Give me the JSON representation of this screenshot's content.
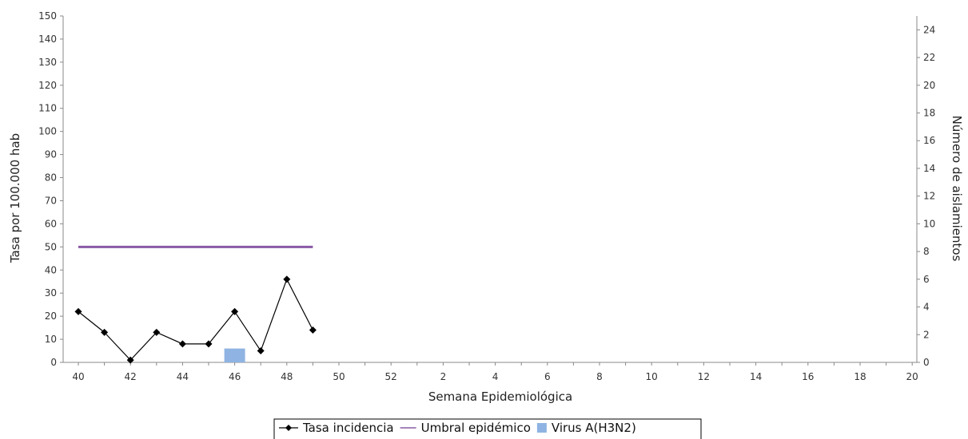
{
  "chart_data": {
    "type": "line",
    "x_categories": [
      "40",
      "41",
      "42",
      "43",
      "44",
      "45",
      "46",
      "47",
      "48",
      "49",
      "50",
      "51",
      "52",
      "1",
      "2",
      "3",
      "4",
      "5",
      "6",
      "7",
      "8",
      "9",
      "10",
      "11",
      "12",
      "13",
      "14",
      "15",
      "16",
      "17",
      "18",
      "19",
      "20"
    ],
    "x_tick_labels_shown": [
      "40",
      "42",
      "44",
      "46",
      "48",
      "50",
      "52",
      "2",
      "4",
      "6",
      "8",
      "10",
      "12",
      "14",
      "16",
      "18",
      "20"
    ],
    "xlabel": "Semana Epidemiológica",
    "ylabel_left": "Tasa por 100.000 hab",
    "ylabel_right": "Número de aislamientos",
    "ylim_left": [
      0,
      150
    ],
    "yticks_left": [
      "0",
      "10",
      "20",
      "30",
      "40",
      "50",
      "60",
      "70",
      "80",
      "90",
      "100",
      "110",
      "120",
      "130",
      "140",
      "150"
    ],
    "ylim_right": [
      0,
      25
    ],
    "yticks_right": [
      "0",
      "2",
      "4",
      "6",
      "8",
      "10",
      "12",
      "14",
      "16",
      "18",
      "20",
      "22",
      "24"
    ],
    "grid": false,
    "legend_position": "bottom",
    "series": [
      {
        "name": "Tasa incidencia",
        "kind": "line-markers",
        "axis": "left",
        "color": "#000000",
        "x": [
          "40",
          "41",
          "42",
          "43",
          "44",
          "45",
          "46",
          "47",
          "48",
          "49"
        ],
        "values": [
          22,
          13,
          1,
          13,
          8,
          8,
          22,
          5,
          36,
          14
        ]
      },
      {
        "name": "Umbral epidémico",
        "kind": "line",
        "axis": "left",
        "color": "#8a5aa6",
        "x": [
          "40",
          "41",
          "42",
          "43",
          "44",
          "45",
          "46",
          "47",
          "48",
          "49"
        ],
        "values": [
          50,
          50,
          50,
          50,
          50,
          50,
          50,
          50,
          50,
          50
        ]
      },
      {
        "name": "Virus A(H3N2)",
        "kind": "bar",
        "axis": "right",
        "color": "#8fb4e3",
        "x": [
          "46"
        ],
        "values": [
          1
        ]
      }
    ]
  }
}
